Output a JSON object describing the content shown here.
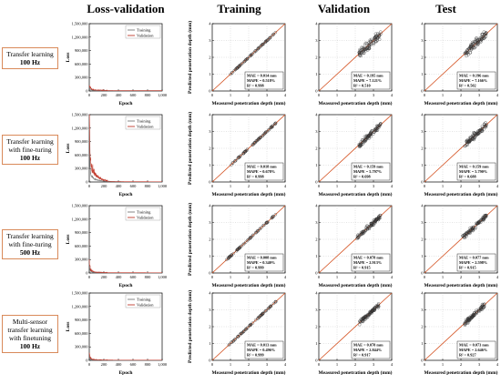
{
  "columns": [
    "Loss-validation",
    "Training",
    "Validation",
    "Test"
  ],
  "rows": [
    {
      "label_lines": [
        "Transfer learning"
      ],
      "freq": "100 Hz"
    },
    {
      "label_lines": [
        "Transfer learning",
        "with fine-turing"
      ],
      "freq": "100 Hz"
    },
    {
      "label_lines": [
        "Transfer learning",
        "with fine-turing"
      ],
      "freq": "500 Hz"
    },
    {
      "label_lines": [
        "Multi-sensor",
        "transfer learning",
        "with finetuning"
      ],
      "freq": "100 Hz"
    }
  ],
  "colors": {
    "training": "#7a7a7a",
    "validation": "#c0392b",
    "identity": "#d4501f",
    "marker": "#333333"
  },
  "chart_data": [
    {
      "type": "line",
      "row": 1,
      "panel": "Loss-validation",
      "xlabel": "Epoch",
      "ylabel": "Loss",
      "xlim": [
        0,
        1000
      ],
      "ylim": [
        0,
        1500000
      ],
      "xticks": [
        "0",
        "200",
        "400",
        "600",
        "800",
        "1,000"
      ],
      "yticks": [
        "0",
        "300,000",
        "600,000",
        "900,000",
        "1,200,000",
        "1,500,000"
      ],
      "legend": "top-right",
      "series": [
        {
          "name": "Training",
          "x": [
            0,
            10,
            30,
            60,
            100,
            200,
            400,
            600,
            800,
            1000
          ],
          "values": [
            70000,
            40000,
            20000,
            12000,
            8000,
            6000,
            5000,
            5000,
            5000,
            5000
          ]
        },
        {
          "name": "Validation",
          "x": [
            0,
            10,
            30,
            60,
            100,
            200,
            400,
            600,
            800,
            1000
          ],
          "values": [
            90000,
            60000,
            30000,
            20000,
            15000,
            10000,
            8000,
            8000,
            8000,
            8000
          ]
        }
      ]
    },
    {
      "type": "scatter",
      "row": 1,
      "panel": "Training",
      "xlabel": "Measured penetration depth (mm)",
      "ylabel": "Predicted penetration depth (mm)",
      "xlim": [
        0,
        4
      ],
      "ylim": [
        0,
        4
      ],
      "xticks": [
        "0",
        "1",
        "2",
        "3",
        "4"
      ],
      "yticks": [
        "0",
        "1",
        "2",
        "3",
        "4"
      ],
      "x_range": [
        1.0,
        3.5
      ],
      "spread": 0.04,
      "mae": "MAE = 0.014 mm",
      "mape": "MAPE = 0.518%",
      "r2": "R² = 0.998"
    },
    {
      "type": "scatter",
      "row": 1,
      "panel": "Validation",
      "xlabel": "Measured penetration depth (mm)",
      "ylabel": "",
      "xlim": [
        0,
        4
      ],
      "ylim": [
        0,
        4
      ],
      "xticks": [
        "0",
        "1",
        "2",
        "3",
        "4"
      ],
      "yticks": [
        "0",
        "1",
        "2",
        "3",
        "4"
      ],
      "x_range": [
        2.2,
        3.4
      ],
      "spread": 0.45,
      "mae": "MAE = 0.195 mm",
      "mape": "MAPE = 7.121%",
      "r2": "R² = 0.510"
    },
    {
      "type": "scatter",
      "row": 1,
      "panel": "Test",
      "xlabel": "Measured penetration depth (mm)",
      "ylabel": "",
      "xlim": [
        0,
        4
      ],
      "ylim": [
        0,
        4
      ],
      "xticks": [
        "0",
        "1",
        "2",
        "3",
        "4"
      ],
      "yticks": [
        "0",
        "1",
        "2",
        "3",
        "4"
      ],
      "x_range": [
        2.2,
        3.4
      ],
      "spread": 0.45,
      "mae": "MAE = 0.196 mm",
      "mape": "MAPE = 7.166%",
      "r2": "R² = 0.502"
    },
    {
      "type": "line",
      "row": 2,
      "panel": "Loss-validation",
      "xlabel": "Epoch",
      "ylabel": "Loss",
      "xlim": [
        0,
        1000
      ],
      "ylim": [
        0,
        1500000
      ],
      "xticks": [
        "0",
        "200",
        "400",
        "600",
        "800",
        "1,000"
      ],
      "yticks": [
        "0",
        "300,000",
        "600,000",
        "900,000",
        "1,200,000",
        "1,500,000"
      ],
      "legend": "top-right",
      "series": [
        {
          "name": "Training",
          "x": [
            0,
            5,
            10,
            20,
            40,
            60,
            100,
            150,
            200,
            300,
            500,
            1000
          ],
          "values": [
            1200000,
            600000,
            300000,
            150000,
            90000,
            60000,
            40000,
            25000,
            15000,
            8000,
            5000,
            4000
          ]
        },
        {
          "name": "Validation",
          "x": [
            0,
            5,
            10,
            20,
            40,
            60,
            100,
            150,
            200,
            300,
            500,
            1000
          ],
          "values": [
            1400000,
            900000,
            500000,
            300000,
            200000,
            150000,
            100000,
            60000,
            30000,
            12000,
            6000,
            5000
          ]
        }
      ]
    },
    {
      "type": "scatter",
      "row": 2,
      "panel": "Training",
      "xlabel": "Measured penetration depth (mm)",
      "ylabel": "Predicted penetration depth (mm)",
      "xlim": [
        0,
        4
      ],
      "ylim": [
        0,
        4
      ],
      "xticks": [
        "0",
        "1",
        "2",
        "3",
        "4"
      ],
      "yticks": [
        "0",
        "1",
        "2",
        "3",
        "4"
      ],
      "x_range": [
        1.0,
        3.5
      ],
      "spread": 0.05,
      "mae": "MAE = 0.018 mm",
      "mape": "MAPE = 0.678%",
      "r2": "R² = 0.998"
    },
    {
      "type": "scatter",
      "row": 2,
      "panel": "Validation",
      "xlabel": "Measured penetration depth (mm)",
      "ylabel": "",
      "xlim": [
        0,
        4
      ],
      "ylim": [
        0,
        4
      ],
      "xticks": [
        "0",
        "1",
        "2",
        "3",
        "4"
      ],
      "yticks": [
        "0",
        "1",
        "2",
        "3",
        "4"
      ],
      "x_range": [
        2.2,
        3.4
      ],
      "spread": 0.3,
      "mae": "MAE = 0.159 mm",
      "mape": "MAPE = 5.797%",
      "r2": "R² = 0.698"
    },
    {
      "type": "scatter",
      "row": 2,
      "panel": "Test",
      "xlabel": "Measured penetration depth (mm)",
      "ylabel": "",
      "xlim": [
        0,
        4
      ],
      "ylim": [
        0,
        4
      ],
      "xticks": [
        "0",
        "1",
        "2",
        "3",
        "4"
      ],
      "yticks": [
        "0",
        "1",
        "2",
        "3",
        "4"
      ],
      "x_range": [
        2.2,
        3.4
      ],
      "spread": 0.3,
      "mae": "MAE = 0.159 mm",
      "mape": "MAPE = 5.790%",
      "r2": "R² = 0.688"
    },
    {
      "type": "line",
      "row": 3,
      "panel": "Loss-validation",
      "xlabel": "Epoch",
      "ylabel": "Loss",
      "xlim": [
        0,
        1000
      ],
      "ylim": [
        0,
        1500000
      ],
      "xticks": [
        "0",
        "200",
        "400",
        "600",
        "800",
        "1,000"
      ],
      "yticks": [
        "0",
        "300,000",
        "600,000",
        "900,000",
        "1,200,000",
        "1,500,000"
      ],
      "legend": "top-right",
      "series": [
        {
          "name": "Training",
          "x": [
            0,
            5,
            10,
            20,
            50,
            100,
            200,
            400,
            1000
          ],
          "values": [
            150000,
            100000,
            60000,
            30000,
            15000,
            8000,
            5000,
            4000,
            3000
          ]
        },
        {
          "name": "Validation",
          "x": [
            0,
            5,
            10,
            20,
            50,
            100,
            200,
            400,
            1000
          ],
          "values": [
            220000,
            150000,
            90000,
            50000,
            25000,
            12000,
            8000,
            6000,
            5000
          ]
        }
      ]
    },
    {
      "type": "scatter",
      "row": 3,
      "panel": "Training",
      "xlabel": "Measured penetration depth (mm)",
      "ylabel": "Predicted penetration depth (mm)",
      "xlim": [
        0,
        4
      ],
      "ylim": [
        0,
        4
      ],
      "xticks": [
        "0",
        "1",
        "2",
        "3",
        "4"
      ],
      "yticks": [
        "0",
        "1",
        "2",
        "3",
        "4"
      ],
      "x_range": [
        0.7,
        3.5
      ],
      "spread": 0.04,
      "mae": "MAE = 0.008 mm",
      "mape": "MAPE = 0.340%",
      "r2": "R² = 0.999"
    },
    {
      "type": "scatter",
      "row": 3,
      "panel": "Validation",
      "xlabel": "Measured penetration depth (mm)",
      "ylabel": "",
      "xlim": [
        0,
        4
      ],
      "ylim": [
        0,
        4
      ],
      "xticks": [
        "0",
        "1",
        "2",
        "3",
        "4"
      ],
      "yticks": [
        "0",
        "1",
        "2",
        "3",
        "4"
      ],
      "x_range": [
        2.1,
        3.4
      ],
      "spread": 0.22,
      "mae": "MAE = 0.078 mm",
      "mape": "MAPE = 2.913%",
      "r2": "R² = 0.915"
    },
    {
      "type": "scatter",
      "row": 3,
      "panel": "Test",
      "xlabel": "Measured penetration depth (mm)",
      "ylabel": "",
      "xlim": [
        0,
        4
      ],
      "ylim": [
        0,
        4
      ],
      "xticks": [
        "0",
        "1",
        "2",
        "3",
        "4"
      ],
      "yticks": [
        "0",
        "1",
        "2",
        "3",
        "4"
      ],
      "x_range": [
        2.1,
        3.4
      ],
      "spread": 0.22,
      "mae": "MAE = 0.077 mm",
      "mape": "MAPE = 2.598%",
      "r2": "R² = 0.915"
    },
    {
      "type": "line",
      "row": 4,
      "panel": "Loss-validation",
      "xlabel": "Epoch",
      "ylabel": "Loss",
      "xlim": [
        0,
        1000
      ],
      "ylim": [
        0,
        1500000
      ],
      "xticks": [
        "0",
        "200",
        "400",
        "600",
        "800",
        "1,000"
      ],
      "yticks": [
        "0",
        "300,000",
        "600,000",
        "900,000",
        "1,200,000",
        "1,500,000"
      ],
      "legend": "top-right",
      "series": [
        {
          "name": "Training",
          "x": [
            0,
            5,
            10,
            20,
            50,
            100,
            200,
            400,
            1000
          ],
          "values": [
            90000,
            60000,
            35000,
            20000,
            10000,
            6000,
            4000,
            3000,
            3000
          ]
        },
        {
          "name": "Validation",
          "x": [
            0,
            5,
            10,
            20,
            50,
            100,
            200,
            400,
            1000
          ],
          "values": [
            130000,
            90000,
            55000,
            30000,
            15000,
            9000,
            6000,
            5000,
            5000
          ]
        }
      ]
    },
    {
      "type": "scatter",
      "row": 4,
      "panel": "Training",
      "xlabel": "Measured penetration depth (mm)",
      "ylabel": "Predicted penetration depth (mm)",
      "xlim": [
        0,
        4
      ],
      "ylim": [
        0,
        4
      ],
      "xticks": [
        "0",
        "1",
        "2",
        "3",
        "4"
      ],
      "yticks": [
        "0",
        "1",
        "2",
        "3",
        "4"
      ],
      "x_range": [
        0.9,
        3.5
      ],
      "spread": 0.04,
      "mae": "MAE = 0.013 mm",
      "mape": "MAPE = 0.496%",
      "r2": "R² = 0.999"
    },
    {
      "type": "scatter",
      "row": 4,
      "panel": "Validation",
      "xlabel": "Measured penetration depth (mm)",
      "ylabel": "",
      "xlim": [
        0,
        4
      ],
      "ylim": [
        0,
        4
      ],
      "xticks": [
        "0",
        "1",
        "2",
        "3",
        "4"
      ],
      "yticks": [
        "0",
        "1",
        "2",
        "3",
        "4"
      ],
      "x_range": [
        2.2,
        3.3
      ],
      "spread": 0.2,
      "mae": "MAE = 0.078 mm",
      "mape": "MAPE = 2.844%",
      "r2": "R² = 0.917"
    },
    {
      "type": "scatter",
      "row": 4,
      "panel": "Test",
      "xlabel": "Measured penetration depth (mm)",
      "ylabel": "",
      "xlim": [
        0,
        4
      ],
      "ylim": [
        0,
        4
      ],
      "xticks": [
        "0",
        "1",
        "2",
        "3",
        "4"
      ],
      "yticks": [
        "0",
        "1",
        "2",
        "3",
        "4"
      ],
      "x_range": [
        2.2,
        3.3
      ],
      "spread": 0.2,
      "mae": "MAE = 0.073 mm",
      "mape": "MAPE = 2.646%",
      "r2": "R² = 0.927"
    }
  ]
}
